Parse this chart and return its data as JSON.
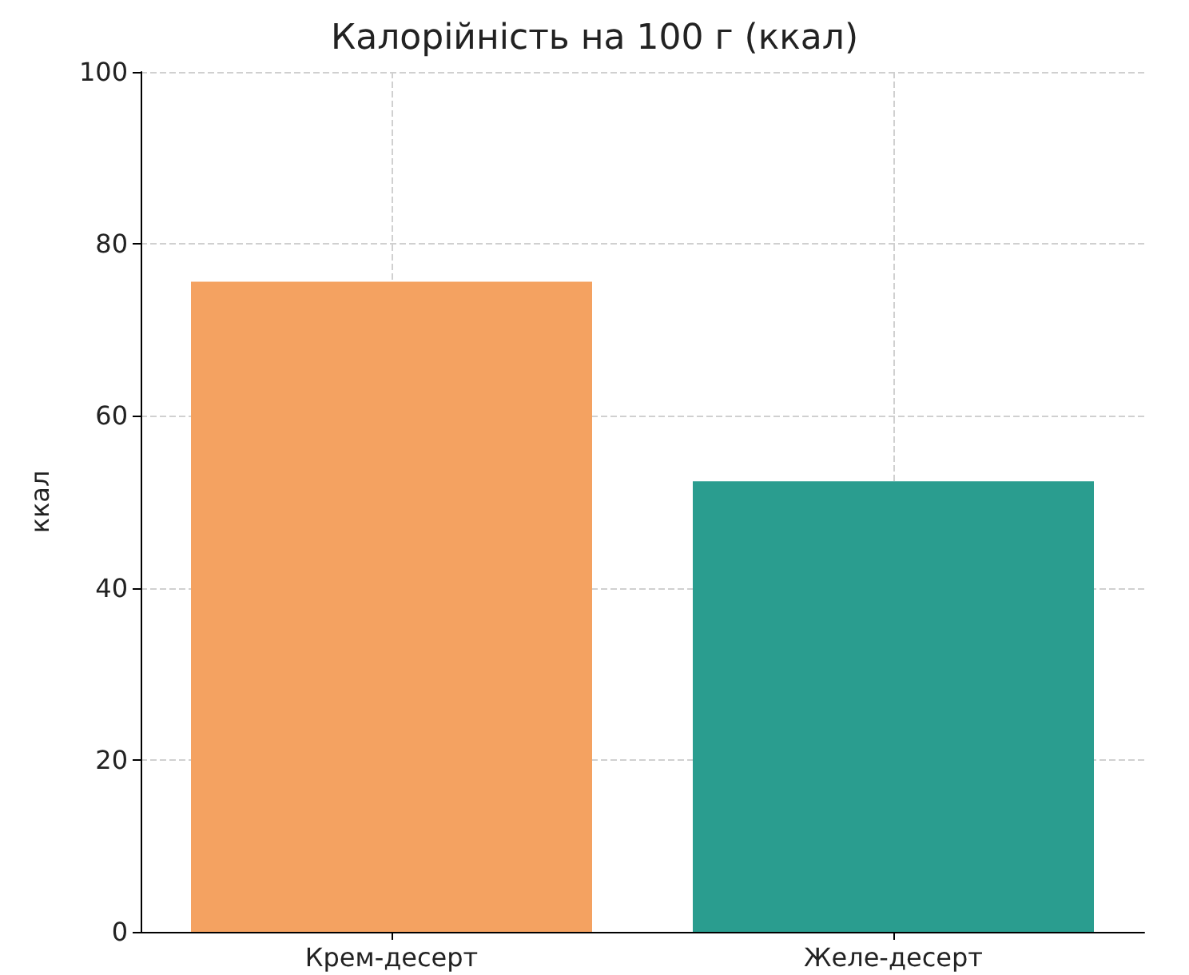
{
  "chart_data": {
    "type": "bar",
    "title": "Калорійність на 100 г (ккал)",
    "ylabel": "ккал",
    "categories": [
      "Крем-десерт",
      "Желе-десерт"
    ],
    "values": [
      75.6,
      52.4
    ],
    "colors": [
      "#f4a261",
      "#2a9d8f"
    ],
    "ylim": [
      0,
      100
    ],
    "yticks": [
      0,
      20,
      40,
      60,
      80,
      100
    ],
    "grid": true
  }
}
